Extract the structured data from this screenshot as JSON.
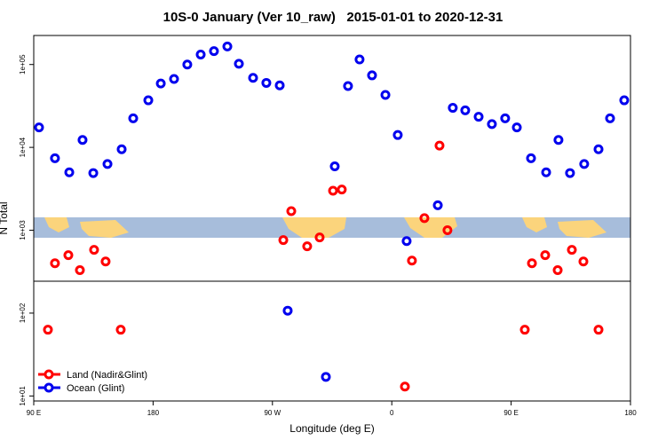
{
  "chart_data": {
    "type": "scatter",
    "title": "10S-0 January (Ver 10_raw)   2015-01-01 to 2020-12-31",
    "x_label": "Longitude (deg E)",
    "y_label": "N Total",
    "xlim": [
      90,
      540
    ],
    "xticks": [
      {
        "value": 90,
        "label": "90 E"
      },
      {
        "value": 180,
        "label": "180"
      },
      {
        "value": 270,
        "label": "90 W"
      },
      {
        "value": 360,
        "label": "0"
      },
      {
        "value": 450,
        "label": "90 E"
      },
      {
        "value": 540,
        "label": "180"
      }
    ],
    "ylim": [
      8.7,
      224000
    ],
    "log_y": true,
    "yticks": [
      {
        "value": 10,
        "label": "1e+01"
      },
      {
        "value": 100,
        "label": "1e+02"
      },
      {
        "value": 1000,
        "label": "1e+03"
      },
      {
        "value": 10000,
        "label": "1e+04"
      },
      {
        "value": 100000,
        "label": "1e+05"
      }
    ],
    "legend": "bottom-left",
    "series": [
      {
        "name": "Land (Nadir&Glint)",
        "color": "#ff0000",
        "x": [
          100.7,
          106,
          116.1,
          124.8,
          135.5,
          144.2,
          155.6,
          278.2,
          284.2,
          296.2,
          305.6,
          315.7,
          322.3,
          369.9,
          375.2,
          384.6,
          396,
          402,
          460.3,
          465.7,
          475.7,
          485.1,
          495.8,
          504.5,
          515.9
        ],
        "values": [
          63,
          400,
          500,
          330,
          580,
          420,
          63,
          760,
          1700,
          640,
          820,
          3000,
          3100,
          13,
          430,
          1400,
          10500,
          1000,
          63,
          400,
          500,
          330,
          580,
          420,
          63
        ]
      },
      {
        "name": "Ocean (Glint)",
        "color": "#0000ee",
        "x": [
          94,
          106,
          116.8,
          126.8,
          134.9,
          145.6,
          156.3,
          165,
          176.4,
          185.8,
          195.8,
          205.8,
          215.9,
          225.9,
          236,
          244.7,
          255.4,
          265.4,
          275.5,
          281.5,
          310.3,
          317,
          327,
          335.7,
          345.1,
          355.2,
          364.5,
          371.2,
          394.7,
          406,
          415.4,
          425.5,
          435.5,
          445.5,
          454.3,
          465,
          476.4,
          485.7,
          494.4,
          505.1,
          515.9,
          524.6,
          535.3
        ],
        "values": [
          17400,
          7400,
          5000,
          12300,
          4900,
          6300,
          9500,
          22400,
          37000,
          59000,
          67000,
          100000,
          132000,
          145000,
          165000,
          102000,
          69000,
          60000,
          56000,
          107,
          17,
          5900,
          55000,
          115000,
          74000,
          43000,
          14100,
          740,
          2000,
          30000,
          28000,
          23400,
          19100,
          22400,
          17400,
          7400,
          5000,
          12300,
          4900,
          6300,
          9500,
          22400,
          37000
        ]
      }
    ]
  }
}
